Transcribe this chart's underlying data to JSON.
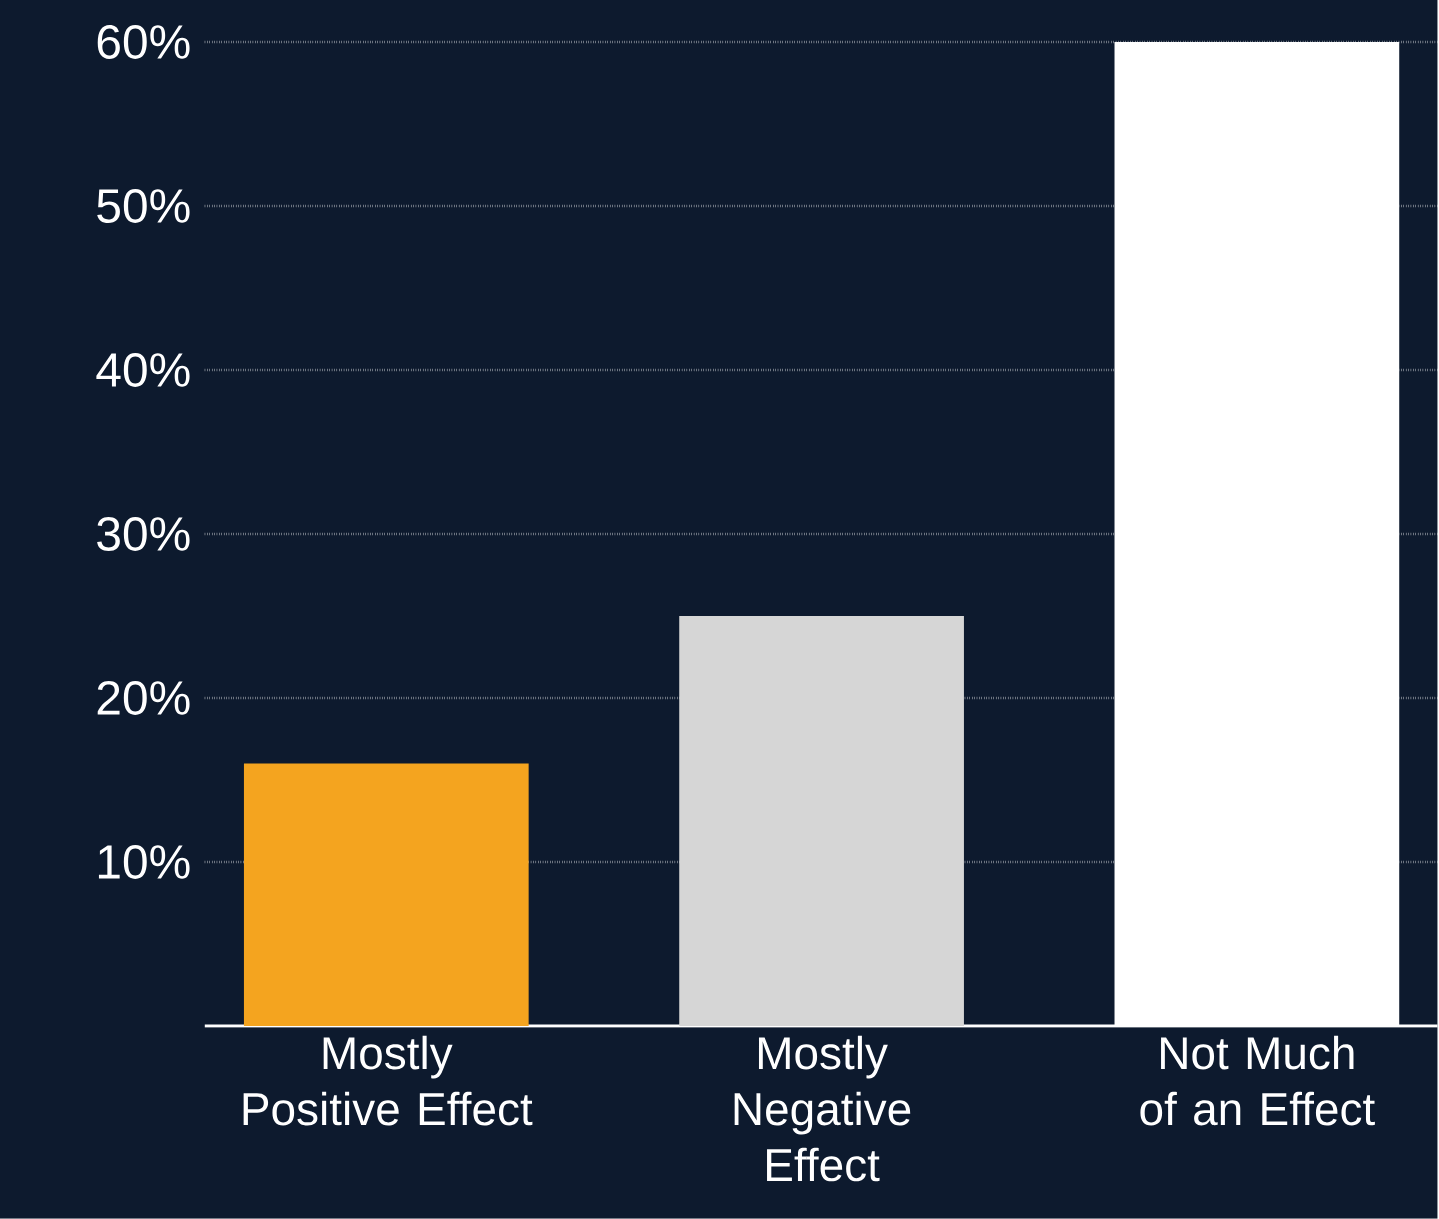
{
  "chart_data": {
    "type": "bar",
    "categories": [
      "Mostly Positive Effect",
      "Mostly Negative Effect",
      "Not Much of an Effect"
    ],
    "values": [
      16,
      25,
      60
    ],
    "colors": [
      "#f4a41f",
      "#d6d6d6",
      "#ffffff"
    ],
    "ylim": [
      0,
      60
    ],
    "yticks": [
      {
        "value": 10,
        "label": "10%"
      },
      {
        "value": 20,
        "label": "20%"
      },
      {
        "value": 30,
        "label": "30%"
      },
      {
        "value": 40,
        "label": "40%"
      },
      {
        "value": 50,
        "label": "50%"
      },
      {
        "value": 60,
        "label": "60%"
      }
    ],
    "grid": "y"
  }
}
